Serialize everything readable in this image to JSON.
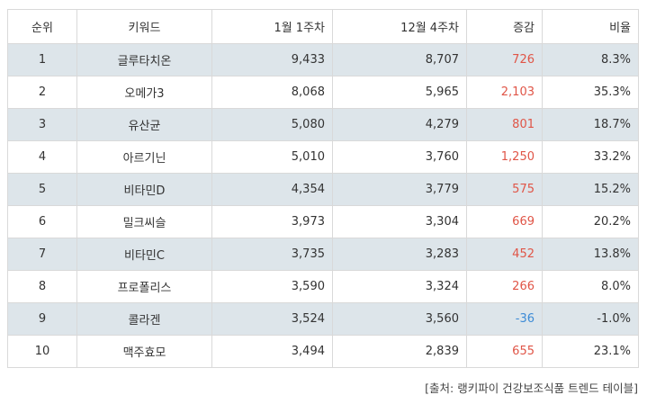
{
  "headers": {
    "rank": "순위",
    "keyword": "키워드",
    "week_jan1": "1월 1주차",
    "week_dec4": "12월 4주차",
    "change": "증감",
    "ratio": "비율"
  },
  "rows": [
    {
      "rank": "1",
      "keyword": "글루타치온",
      "jan1": "9,433",
      "dec4": "8,707",
      "change": "726",
      "ratio": "8.3%",
      "negative": false
    },
    {
      "rank": "2",
      "keyword": "오메가3",
      "jan1": "8,068",
      "dec4": "5,965",
      "change": "2,103",
      "ratio": "35.3%",
      "negative": false
    },
    {
      "rank": "3",
      "keyword": "유산균",
      "jan1": "5,080",
      "dec4": "4,279",
      "change": "801",
      "ratio": "18.7%",
      "negative": false
    },
    {
      "rank": "4",
      "keyword": "아르기닌",
      "jan1": "5,010",
      "dec4": "3,760",
      "change": "1,250",
      "ratio": "33.2%",
      "negative": false
    },
    {
      "rank": "5",
      "keyword": "비타민D",
      "jan1": "4,354",
      "dec4": "3,779",
      "change": "575",
      "ratio": "15.2%",
      "negative": false
    },
    {
      "rank": "6",
      "keyword": "밀크씨슬",
      "jan1": "3,973",
      "dec4": "3,304",
      "change": "669",
      "ratio": "20.2%",
      "negative": false
    },
    {
      "rank": "7",
      "keyword": "비타민C",
      "jan1": "3,735",
      "dec4": "3,283",
      "change": "452",
      "ratio": "13.8%",
      "negative": false
    },
    {
      "rank": "8",
      "keyword": "프로폴리스",
      "jan1": "3,590",
      "dec4": "3,324",
      "change": "266",
      "ratio": "8.0%",
      "negative": false
    },
    {
      "rank": "9",
      "keyword": "콜라겐",
      "jan1": "3,524",
      "dec4": "3,560",
      "change": "-36",
      "ratio": "-1.0%",
      "negative": true
    },
    {
      "rank": "10",
      "keyword": "맥주효모",
      "jan1": "3,494",
      "dec4": "2,839",
      "change": "655",
      "ratio": "23.1%",
      "negative": false
    }
  ],
  "source": "[출처: 랭키파이 건강보조식품 트렌드 테이블]",
  "colors": {
    "positive_change": "#e05547",
    "negative_change": "#3d8bd6",
    "shaded_row": "#dde5ea",
    "border": "#d9d9d9"
  }
}
